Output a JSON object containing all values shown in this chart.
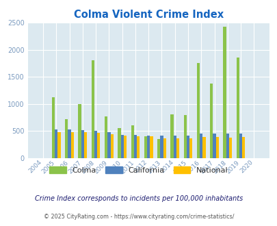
{
  "title": "Colma Violent Crime Index",
  "years": [
    2004,
    2005,
    2006,
    2007,
    2008,
    2009,
    2010,
    2011,
    2012,
    2013,
    2014,
    2015,
    2016,
    2017,
    2018,
    2019,
    2020
  ],
  "colma": [
    0,
    1130,
    720,
    1000,
    1800,
    775,
    550,
    610,
    410,
    350,
    810,
    790,
    1750,
    1380,
    2430,
    1850,
    0
  ],
  "california": [
    0,
    535,
    535,
    520,
    500,
    475,
    435,
    425,
    420,
    415,
    420,
    415,
    455,
    455,
    455,
    450,
    0
  ],
  "national": [
    0,
    475,
    475,
    475,
    465,
    445,
    415,
    400,
    400,
    370,
    365,
    370,
    395,
    395,
    375,
    390,
    0
  ],
  "colma_color": "#8bc34a",
  "california_color": "#4f81bd",
  "national_color": "#ffc000",
  "plot_bg": "#dce9f0",
  "ylim": [
    0,
    2500
  ],
  "yticks": [
    0,
    500,
    1000,
    1500,
    2000,
    2500
  ],
  "subtitle": "Crime Index corresponds to incidents per 100,000 inhabitants",
  "footer": "© 2025 CityRating.com - https://www.cityrating.com/crime-statistics/",
  "legend_labels": [
    "Colma",
    "California",
    "National"
  ],
  "title_color": "#1565c0",
  "subtitle_color": "#1a1a6e",
  "footer_color": "#555555",
  "tick_color": "#7a9abf",
  "bar_width": 0.22
}
